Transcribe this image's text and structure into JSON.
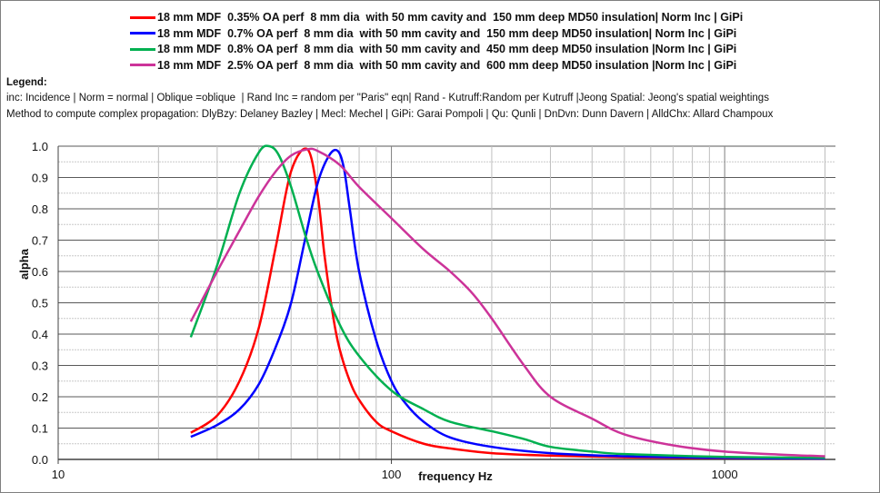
{
  "legend_notes": {
    "title": "Legend:",
    "line1": "inc: Incidence | Norm = normal | Oblique =oblique  | Rand Inc = random per \"Paris\" eqn| Rand - Kutruff:Random per Kutruff |Jeong Spatial: Jeong's spatial weightings",
    "line2": "Method to compute complex propagation: DlyBzy: Delaney Bazley | Mecl: Mechel | GiPi: Garai Pompoli | Qu: Qunli | DnDvn: Dunn Davern | AlldChx: Allard Champoux"
  },
  "chart_data": {
    "type": "line",
    "title": "",
    "xlabel": "frequency Hz",
    "ylabel": "alpha",
    "xscale": "log",
    "xlim": [
      10,
      2150
    ],
    "ylim": [
      0,
      1.0
    ],
    "grid": true,
    "legend_placement": "top",
    "x_ticks": [
      "10",
      "100",
      "1000"
    ],
    "y_ticks": [
      "0.0",
      "0.1",
      "0.2",
      "0.3",
      "0.4",
      "0.5",
      "0.6",
      "0.7",
      "0.8",
      "0.9",
      "1.0"
    ],
    "series": [
      {
        "name": "18 mm MDF  0.35% OA perf  8 mm dia  with 50 mm cavity and  150 mm deep MD50 insulation| Norm Inc | GiPi",
        "color": "#ff0000",
        "x": [
          25,
          30,
          35,
          40,
          45,
          50,
          56,
          60,
          63,
          67,
          70,
          75,
          80,
          90,
          100,
          125,
          150,
          200,
          300,
          500,
          1000,
          2000
        ],
        "y": [
          0.085,
          0.14,
          0.25,
          0.42,
          0.68,
          0.92,
          0.99,
          0.85,
          0.65,
          0.45,
          0.35,
          0.25,
          0.19,
          0.12,
          0.09,
          0.05,
          0.035,
          0.02,
          0.012,
          0.007,
          0.004,
          0.003
        ]
      },
      {
        "name": "18 mm MDF  0.7% OA perf  8 mm dia  with 50 mm cavity and  150 mm deep MD50 insulation| Norm Inc | GiPi",
        "color": "#0000ff",
        "x": [
          25,
          30,
          35,
          40,
          45,
          50,
          55,
          60,
          65,
          69,
          72,
          75,
          80,
          90,
          100,
          110,
          125,
          150,
          200,
          300,
          500,
          1000,
          2000
        ],
        "y": [
          0.072,
          0.11,
          0.16,
          0.24,
          0.36,
          0.5,
          0.7,
          0.88,
          0.97,
          0.985,
          0.93,
          0.8,
          0.6,
          0.38,
          0.25,
          0.18,
          0.12,
          0.07,
          0.04,
          0.02,
          0.01,
          0.005,
          0.003
        ]
      },
      {
        "name": "18 mm MDF  0.8% OA perf  8 mm dia  with 50 mm cavity and  450 mm deep MD50 insulation |Norm Inc | GiPi",
        "color": "#00b050",
        "x": [
          25,
          30,
          35,
          40,
          43,
          46,
          50,
          55,
          60,
          70,
          80,
          100,
          125,
          150,
          200,
          250,
          300,
          400,
          500,
          1000,
          2000
        ],
        "y": [
          0.39,
          0.62,
          0.85,
          0.98,
          1.0,
          0.97,
          0.87,
          0.72,
          0.6,
          0.43,
          0.33,
          0.22,
          0.16,
          0.12,
          0.09,
          0.065,
          0.04,
          0.025,
          0.017,
          0.008,
          0.005
        ]
      },
      {
        "name": "18 mm MDF  2.5% OA perf  8 mm dia  with 50 mm cavity and  600 mm deep MD50 insulation |Norm Inc | GiPi",
        "color": "#cc3399",
        "x": [
          25,
          30,
          35,
          40,
          45,
          50,
          56,
          60,
          70,
          80,
          100,
          125,
          150,
          175,
          200,
          250,
          300,
          400,
          500,
          700,
          1000,
          1500,
          2000
        ],
        "y": [
          0.44,
          0.6,
          0.73,
          0.84,
          0.92,
          0.97,
          0.99,
          0.985,
          0.94,
          0.87,
          0.77,
          0.67,
          0.6,
          0.53,
          0.45,
          0.3,
          0.2,
          0.13,
          0.08,
          0.045,
          0.025,
          0.015,
          0.01
        ]
      }
    ]
  }
}
